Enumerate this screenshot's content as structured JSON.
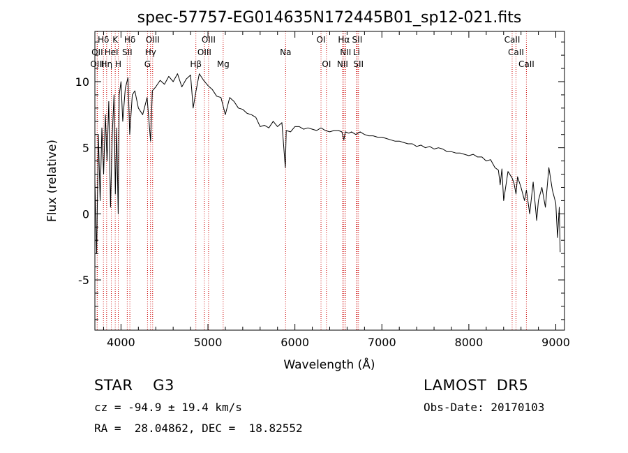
{
  "chart_data": {
    "type": "line",
    "title": "spec-57757-EG014635N172445B01_sp12-021.fits",
    "xlabel": "Wavelength (Å)",
    "ylabel": "Flux (relative)",
    "xlim": [
      3700,
      9100
    ],
    "ylim": [
      -8.8,
      13.8
    ],
    "xticks": [
      4000,
      5000,
      6000,
      7000,
      8000,
      9000
    ],
    "yticks": [
      -5,
      0,
      5,
      10
    ],
    "grid": false,
    "line_color": "#000000",
    "marker_color": "#cc0000",
    "spectrum": {
      "x": [
        3700,
        3720,
        3740,
        3760,
        3780,
        3800,
        3820,
        3840,
        3860,
        3880,
        3900,
        3920,
        3935,
        3950,
        3968,
        3980,
        4000,
        4020,
        4050,
        4080,
        4100,
        4130,
        4160,
        4200,
        4250,
        4300,
        4340,
        4360,
        4400,
        4450,
        4500,
        4550,
        4600,
        4650,
        4700,
        4750,
        4800,
        4830,
        4860,
        4900,
        4950,
        5000,
        5050,
        5100,
        5150,
        5200,
        5250,
        5300,
        5350,
        5400,
        5450,
        5500,
        5550,
        5600,
        5650,
        5700,
        5750,
        5800,
        5850,
        5890,
        5900,
        5950,
        6000,
        6050,
        6100,
        6150,
        6200,
        6250,
        6300,
        6350,
        6400,
        6450,
        6500,
        6540,
        6563,
        6580,
        6620,
        6650,
        6700,
        6750,
        6800,
        6850,
        6900,
        6950,
        7000,
        7050,
        7100,
        7150,
        7200,
        7250,
        7300,
        7350,
        7400,
        7450,
        7500,
        7550,
        7600,
        7650,
        7700,
        7750,
        7800,
        7850,
        7900,
        7950,
        8000,
        8050,
        8100,
        8150,
        8200,
        8250,
        8300,
        8340,
        8360,
        8380,
        8400,
        8450,
        8498,
        8520,
        8542,
        8560,
        8600,
        8640,
        8662,
        8700,
        8740,
        8780,
        8800,
        8840,
        8880,
        8920,
        8960,
        9000,
        9020,
        9040,
        9050
      ],
      "y": [
        2.5,
        -3.0,
        6.0,
        1.0,
        6.5,
        3.0,
        7.5,
        4.0,
        8.5,
        0.5,
        6.0,
        9.0,
        1.5,
        6.5,
        0.0,
        9.0,
        10.0,
        7.0,
        9.5,
        10.3,
        6.0,
        9.0,
        9.3,
        8.0,
        7.5,
        8.8,
        5.5,
        9.3,
        9.6,
        10.1,
        9.8,
        10.4,
        10.0,
        10.6,
        9.6,
        10.2,
        10.5,
        8.0,
        9.2,
        10.6,
        10.1,
        9.7,
        9.4,
        8.9,
        8.8,
        7.5,
        8.8,
        8.5,
        8.0,
        7.9,
        7.6,
        7.5,
        7.3,
        6.6,
        6.7,
        6.5,
        7.0,
        6.6,
        6.9,
        3.5,
        6.3,
        6.2,
        6.6,
        6.6,
        6.4,
        6.5,
        6.4,
        6.3,
        6.5,
        6.3,
        6.2,
        6.3,
        6.3,
        6.2,
        5.6,
        6.2,
        6.1,
        6.2,
        6.0,
        6.2,
        6.0,
        5.9,
        5.9,
        5.8,
        5.8,
        5.7,
        5.6,
        5.5,
        5.5,
        5.4,
        5.3,
        5.3,
        5.1,
        5.2,
        5.0,
        5.1,
        4.9,
        5.0,
        4.9,
        4.7,
        4.7,
        4.6,
        4.6,
        4.5,
        4.4,
        4.5,
        4.3,
        4.3,
        4.0,
        4.1,
        3.5,
        3.3,
        2.2,
        3.4,
        1.0,
        3.2,
        2.7,
        2.3,
        1.5,
        2.8,
        2.0,
        1.0,
        1.8,
        0.0,
        2.4,
        -0.5,
        1.0,
        2.0,
        0.5,
        3.5,
        1.8,
        0.8,
        -1.8,
        0.5,
        -2.9
      ]
    },
    "lines": [
      {
        "label": "Hδ",
        "x": 3798,
        "row": 0
      },
      {
        "label": "K",
        "x": 3934,
        "row": 0
      },
      {
        "label": "Hδ",
        "x": 4102,
        "row": 0
      },
      {
        "label": "OIII",
        "x": 4364,
        "row": 0
      },
      {
        "label": "OIII",
        "x": 5007,
        "row": 0
      },
      {
        "label": "OI",
        "x": 6300,
        "row": 0
      },
      {
        "label": "Hα",
        "x": 6563,
        "row": 0
      },
      {
        "label": "SII",
        "x": 6716,
        "row": 0
      },
      {
        "label": "CaII",
        "x": 8498,
        "row": 0
      },
      {
        "label": "OII",
        "x": 3727,
        "row": 1
      },
      {
        "label": "HeI",
        "x": 3889,
        "row": 1
      },
      {
        "label": "SII",
        "x": 4072,
        "row": 1
      },
      {
        "label": "Hγ",
        "x": 4340,
        "row": 1
      },
      {
        "label": "OIII",
        "x": 4959,
        "row": 1
      },
      {
        "label": "Na",
        "x": 5893,
        "row": 1
      },
      {
        "label": "NII",
        "x": 6583,
        "row": 1
      },
      {
        "label": "Li",
        "x": 6708,
        "row": 1
      },
      {
        "label": "CaII",
        "x": 8542,
        "row": 1
      },
      {
        "label": "OIII",
        "x": 3727,
        "row": 2
      },
      {
        "label": "Hη",
        "x": 3835,
        "row": 2
      },
      {
        "label": "H",
        "x": 3969,
        "row": 2
      },
      {
        "label": "G",
        "x": 4305,
        "row": 2
      },
      {
        "label": "Hβ",
        "x": 4861,
        "row": 2
      },
      {
        "label": "Mg",
        "x": 5175,
        "row": 2
      },
      {
        "label": "OI",
        "x": 6363,
        "row": 2
      },
      {
        "label": "NII",
        "x": 6548,
        "row": 2
      },
      {
        "label": "SII",
        "x": 6731,
        "row": 2
      },
      {
        "label": "CaII",
        "x": 8662,
        "row": 2
      }
    ]
  },
  "info": {
    "object": "STAR    G3",
    "survey": "LAMOST  DR5",
    "cz": "cz = -94.9 ± 19.4 km/s",
    "obs_date": "Obs-Date: 20170103",
    "coords": "RA =  28.04862, DEC =  18.82552"
  }
}
